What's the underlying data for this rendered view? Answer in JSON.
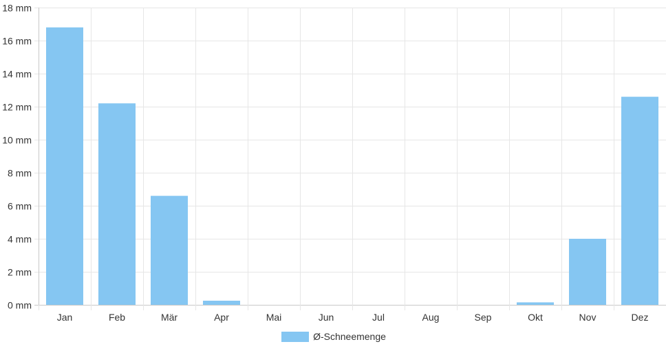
{
  "chart_data": {
    "type": "bar",
    "categories": [
      "Jan",
      "Feb",
      "Mär",
      "Apr",
      "Mai",
      "Jun",
      "Jul",
      "Aug",
      "Sep",
      "Okt",
      "Nov",
      "Dez"
    ],
    "series": [
      {
        "name": "Ø-Schneemenge",
        "values": [
          16.8,
          12.2,
          6.6,
          0.25,
          0,
          0,
          0,
          0,
          0,
          0.15,
          4.0,
          12.6
        ],
        "color": "#85c6f2"
      }
    ],
    "y_unit": "mm",
    "ylim": [
      0,
      18
    ],
    "y_ticks": [
      0,
      2,
      4,
      6,
      8,
      10,
      12,
      14,
      16,
      18
    ],
    "y_tick_labels": [
      "0 mm",
      "2 mm",
      "4 mm",
      "6 mm",
      "8 mm",
      "10 mm",
      "12 mm",
      "14 mm",
      "16 mm",
      "18 mm"
    ],
    "grid": true,
    "legend_position": "bottom"
  }
}
